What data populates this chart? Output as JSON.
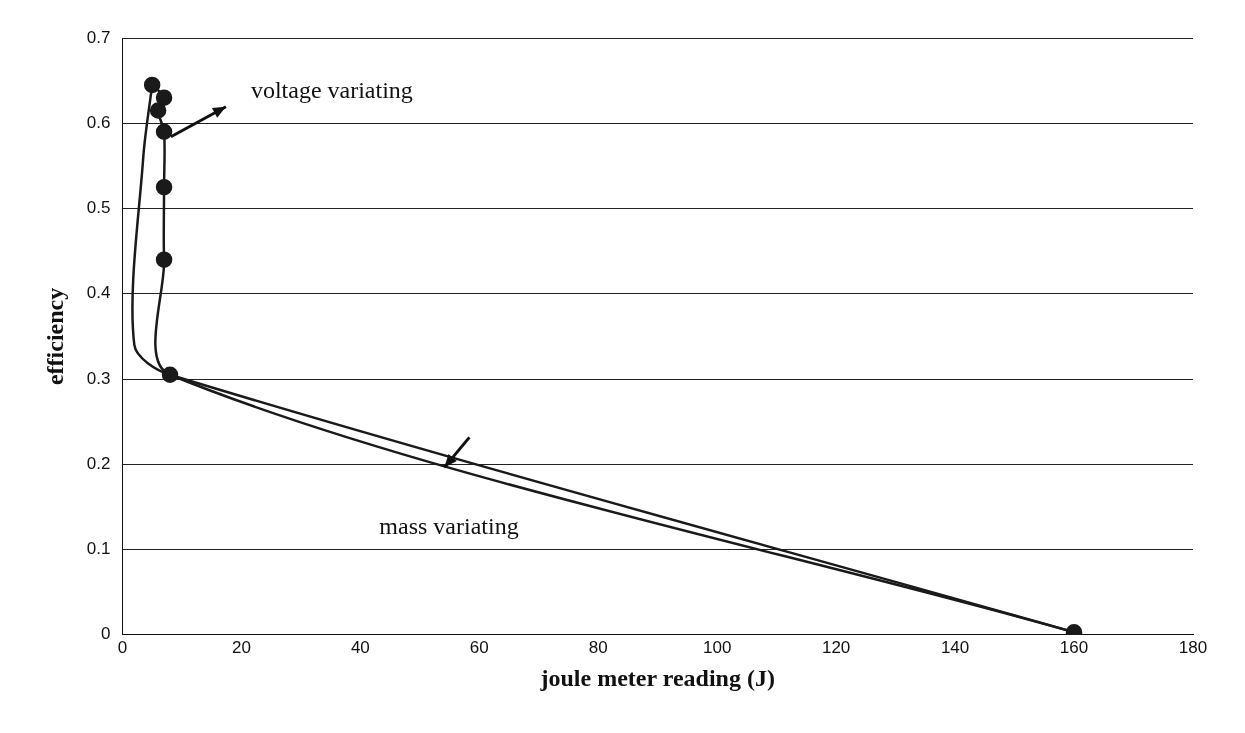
{
  "chart_data": {
    "type": "line",
    "xlabel": "joule meter reading (J)",
    "ylabel": "efficiency",
    "xlim": [
      0,
      180
    ],
    "xticks": [
      0,
      20,
      40,
      60,
      80,
      100,
      120,
      140,
      160,
      180
    ],
    "ylim": [
      0,
      0.7
    ],
    "yticks": [
      0,
      0.1,
      0.2,
      0.3,
      0.4,
      0.5,
      0.6,
      0.7
    ],
    "grid": "y",
    "legend": false,
    "marker": "circle",
    "series": [
      {
        "color": "#1a1a1a",
        "x": [
          5,
          7,
          6,
          7,
          7,
          7,
          8,
          160
        ],
        "values": [
          0.645,
          0.63,
          0.615,
          0.59,
          0.525,
          0.44,
          0.305,
          0.003
        ]
      },
      {
        "color": "#1a1a1a",
        "marker": "none",
        "x": [
          5,
          3.5,
          2,
          8,
          160
        ],
        "values": [
          0.645,
          0.56,
          0.34,
          0.305,
          0.003
        ]
      }
    ],
    "annotations": [
      "voltage variating",
      "mass variating"
    ]
  }
}
